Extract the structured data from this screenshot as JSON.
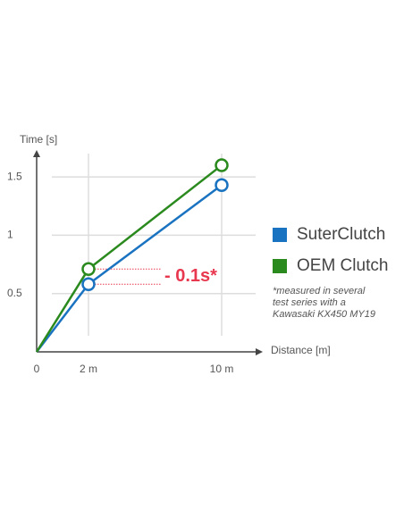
{
  "chart_data": {
    "type": "line",
    "y_label": "Time [s]",
    "x_label": "Distance [m]",
    "categories": [
      "0",
      "2 m",
      "10 m"
    ],
    "series": [
      {
        "name": "SuterClutch",
        "color": "#1a73c0",
        "values": [
          0,
          0.58,
          1.43
        ]
      },
      {
        "name": "OEM Clutch",
        "color": "#2a8a1e",
        "values": [
          0,
          0.71,
          1.6
        ]
      }
    ],
    "ylim": [
      0,
      1.7
    ],
    "yticks": [
      0.5,
      1,
      1.5
    ],
    "grid": true,
    "annotation": "- 0.1s*",
    "annotation_color": "#e8384f",
    "note": [
      "*measured in several",
      "test series with a",
      "Kawasaki KX450 MY19"
    ]
  }
}
